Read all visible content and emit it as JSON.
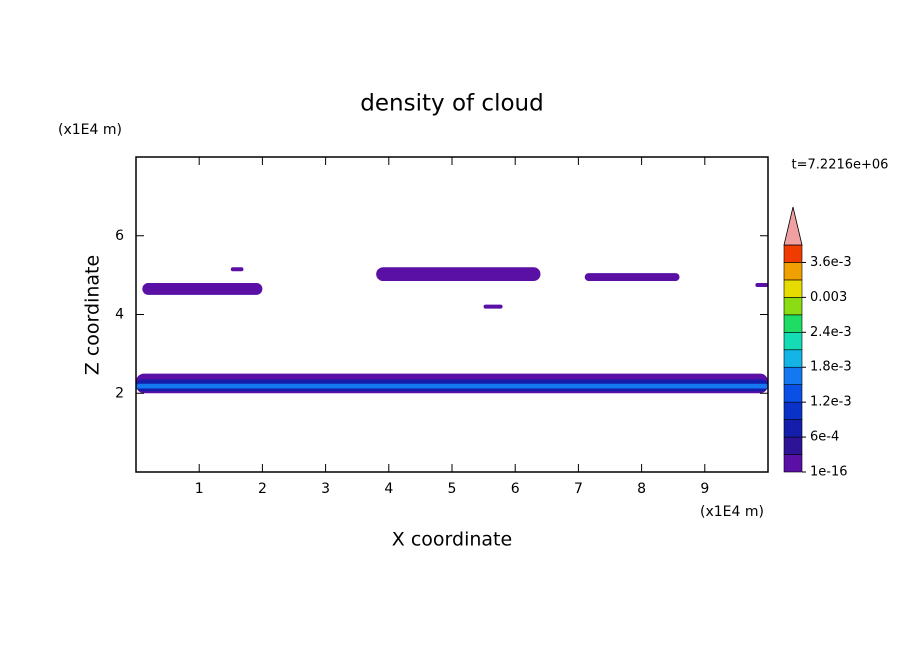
{
  "chart_data": {
    "type": "contour",
    "title": "density of cloud",
    "x_label": "X coordinate",
    "y_label": "Z coordinate",
    "x_unit": "(x1E4 m)",
    "y_unit": "(x1E4 m)",
    "time_label": "t=7.2216e+06",
    "xlim": [
      0,
      10
    ],
    "ylim": [
      0,
      8
    ],
    "xticks": [
      1,
      2,
      3,
      4,
      5,
      6,
      7,
      8,
      9
    ],
    "yticks": [
      2,
      4,
      6
    ],
    "clim": [
      1e-16,
      0.0039
    ],
    "colors": [
      "#5a0fa5",
      "#2d1496",
      "#141eaa",
      "#0a32c8",
      "#0a50e6",
      "#1478f0",
      "#14b4e6",
      "#14dcb4",
      "#1edc64",
      "#8cdc14",
      "#e6dc00",
      "#f0a000",
      "#f03c00"
    ],
    "extend_color": "#f0a0a0",
    "cticks": [
      {
        "value": 1e-16,
        "label": "1e-16"
      },
      {
        "value": 0.0006,
        "label": "6e-4"
      },
      {
        "value": 0.0012,
        "label": "1.2e-3"
      },
      {
        "value": 0.0018,
        "label": "1.8e-3"
      },
      {
        "value": 0.0024,
        "label": "2.4e-3"
      },
      0.003,
      {
        "value": 0.0036,
        "label": "3.6e-3"
      }
    ],
    "patches": [
      {
        "x": [
          0.1,
          2.0
        ],
        "z": [
          4.5,
          4.8
        ],
        "value": 0.0001
      },
      {
        "x": [
          1.5,
          1.7
        ],
        "z": [
          5.1,
          5.2
        ],
        "value": 0.0001
      },
      {
        "x": [
          3.8,
          6.4
        ],
        "z": [
          4.85,
          5.2
        ],
        "value": 0.0001
      },
      {
        "x": [
          5.5,
          5.8
        ],
        "z": [
          4.15,
          4.25
        ],
        "value": 0.0001
      },
      {
        "x": [
          7.1,
          8.6
        ],
        "z": [
          4.85,
          5.05
        ],
        "value": 0.0001
      },
      {
        "x": [
          9.8,
          10
        ],
        "z": [
          4.7,
          4.8
        ],
        "value": 0.0001
      },
      {
        "x": [
          0,
          10
        ],
        "z": [
          2.0,
          2.5
        ],
        "value": 0.0001
      },
      {
        "x": [
          0,
          10
        ],
        "z": [
          2.05,
          2.35
        ],
        "value": 0.0009
      },
      {
        "x": [
          0,
          10
        ],
        "z": [
          2.12,
          2.24
        ],
        "value": 0.0018
      }
    ]
  }
}
